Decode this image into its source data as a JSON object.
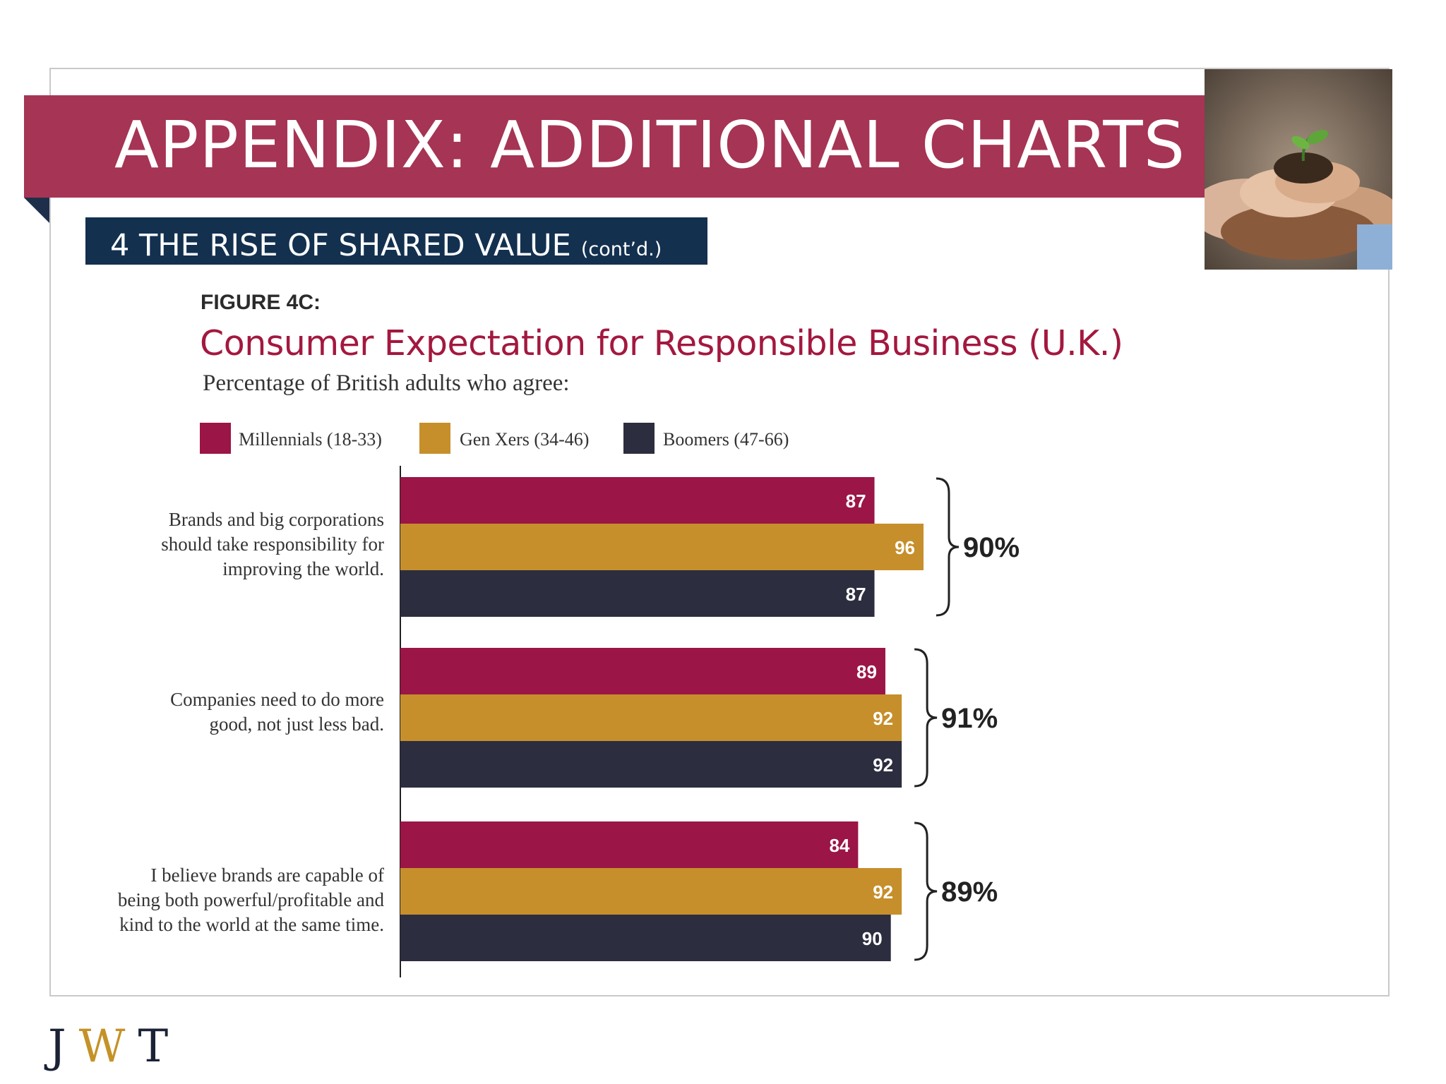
{
  "header": {
    "title": "APPENDIX: ADDITIONAL CHARTS",
    "section_title": "4  THE RISE OF SHARED VALUE",
    "section_suffix": "(cont’d.)"
  },
  "figure_label": "FIGURE 4C:",
  "footer_logo": {
    "j": "J",
    "w": "W",
    "t": "T"
  },
  "colors": {
    "banner": "#a63454",
    "section_bar": "#13304f",
    "millennials": "#9b1546",
    "gen_x": "#c68f2b",
    "boomers": "#2c2d3f"
  },
  "chart_data": {
    "type": "bar",
    "orientation": "horizontal",
    "title": "Consumer Expectation for Responsible Business (U.K.)",
    "subtitle": "Percentage of British adults who agree:",
    "categories": [
      "Brands and big corporations should take responsibility for improving the world.",
      "Companies need to do more good, not just less bad.",
      "I believe brands are capable of being both powerful/profitable and kind to the world at the same time."
    ],
    "category_lines": [
      [
        "Brands and big corporations",
        "should take responsibility for",
        "improving the world."
      ],
      [
        "Companies need to do more",
        "good, not just less bad."
      ],
      [
        "I believe brands are capable of",
        "being both powerful/profitable and",
        "kind to the world at the same time."
      ]
    ],
    "series": [
      {
        "name": "Millennials (18-33)",
        "values": [
          87,
          89,
          84
        ],
        "color": "#9b1546"
      },
      {
        "name": "Gen Xers (34-46)",
        "values": [
          96,
          92,
          92
        ],
        "color": "#c68f2b"
      },
      {
        "name": "Boomers (47-66)",
        "values": [
          87,
          92,
          90
        ],
        "color": "#2c2d3f"
      }
    ],
    "totals": [
      "90%",
      "91%",
      "89%"
    ],
    "xlim": [
      0,
      100
    ],
    "legend_position": "top",
    "grid": false
  }
}
